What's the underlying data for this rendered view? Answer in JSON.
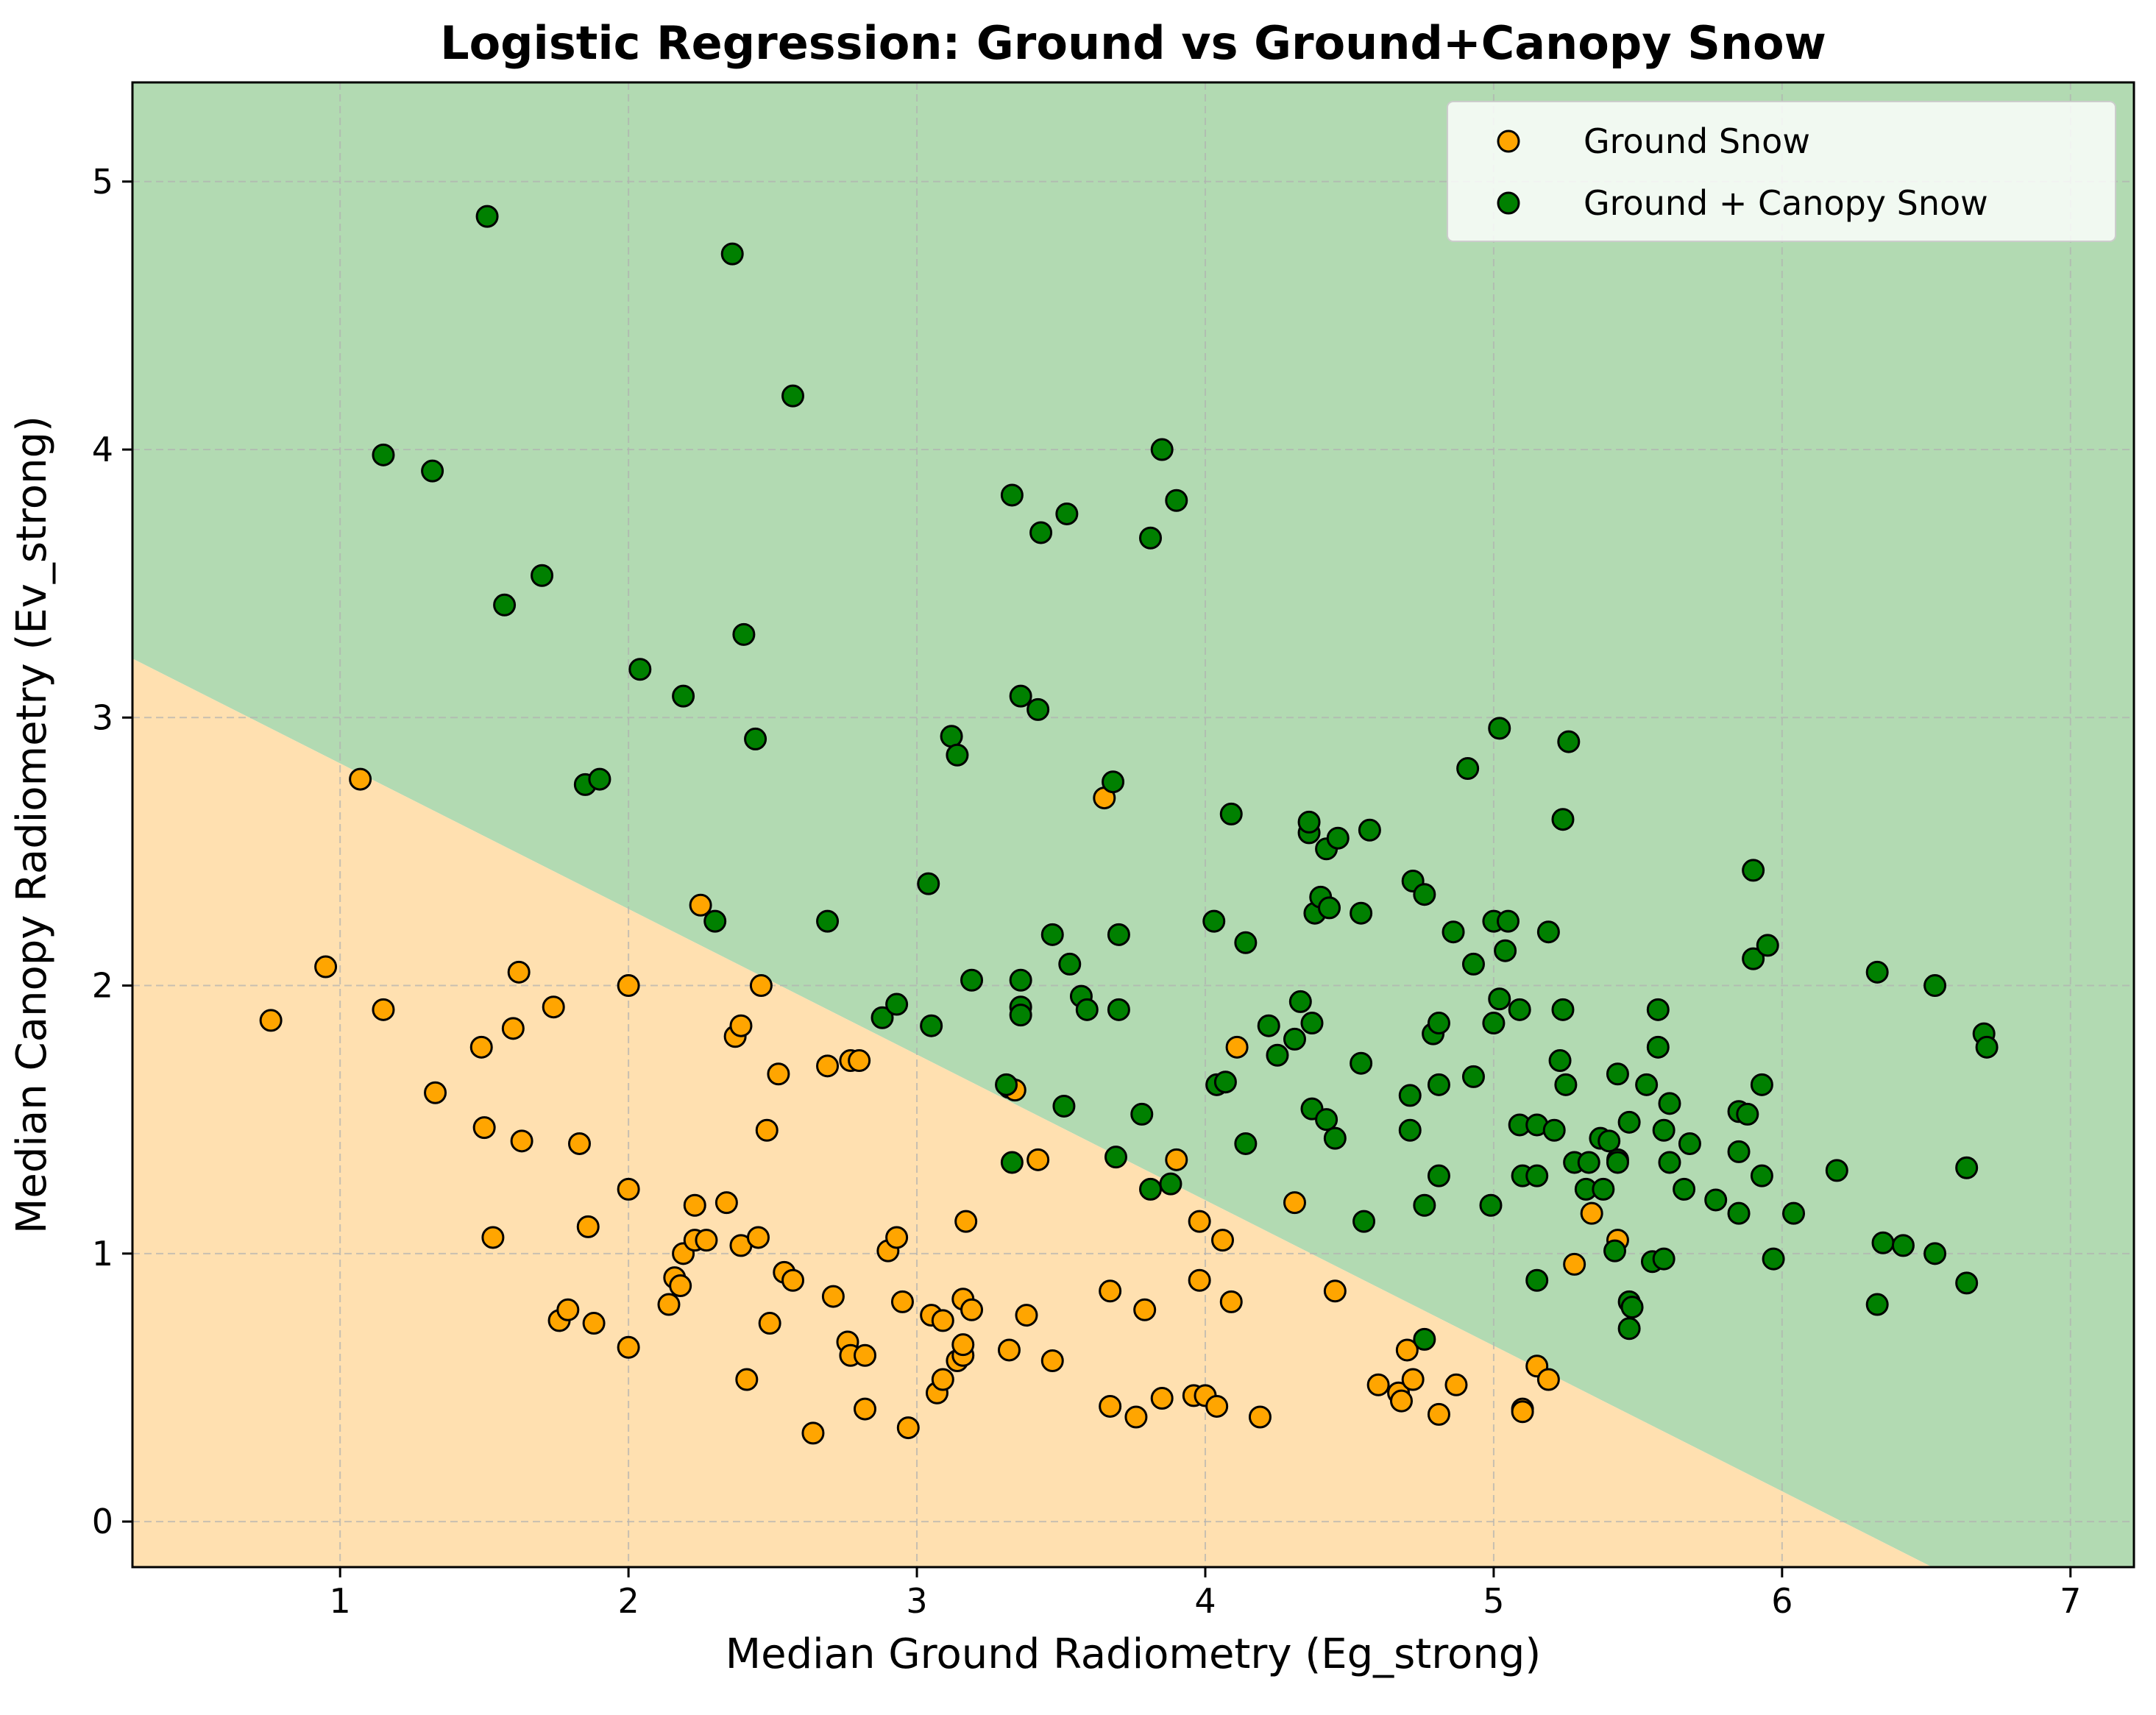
{
  "chart_data": {
    "type": "scatter",
    "title": "Logistic Regression: Ground vs Ground+Canopy Snow",
    "xlabel": "Median Ground Radiometry (Eg_strong)",
    "ylabel": "Median Canopy Radiometry (Ev_strong)",
    "xlim": [
      0.28,
      7.22
    ],
    "ylim": [
      -0.17,
      5.37
    ],
    "xticks": [
      "1",
      "2",
      "3",
      "4",
      "5",
      "6",
      "7"
    ],
    "yticks": [
      "0",
      "1",
      "2",
      "3",
      "4",
      "5"
    ],
    "grid": true,
    "legend_position": "top-right",
    "decision_boundary": {
      "points": [
        [
          0.28,
          3.22
        ],
        [
          7.22,
          -0.55
        ]
      ],
      "region_below_label": "Ground Snow",
      "region_above_label": "Ground + Canopy Snow",
      "region_below_color": "#ffe0b0",
      "region_above_color": "#b2dab2"
    },
    "series": [
      {
        "name": "Ground Snow",
        "color": "#ffa500",
        "points": [
          [
            0.76,
            1.87
          ],
          [
            0.95,
            2.07
          ],
          [
            1.07,
            2.77
          ],
          [
            1.15,
            1.91
          ],
          [
            1.33,
            1.6
          ],
          [
            1.49,
            1.77
          ],
          [
            1.5,
            1.47
          ],
          [
            1.53,
            1.06
          ],
          [
            1.6,
            1.84
          ],
          [
            1.62,
            2.05
          ],
          [
            1.63,
            1.42
          ],
          [
            1.74,
            1.92
          ],
          [
            1.76,
            0.75
          ],
          [
            1.79,
            0.79
          ],
          [
            1.83,
            1.41
          ],
          [
            1.86,
            1.1
          ],
          [
            1.88,
            0.74
          ],
          [
            2.0,
            1.24
          ],
          [
            2.0,
            2.0
          ],
          [
            2.0,
            0.65
          ],
          [
            2.14,
            0.81
          ],
          [
            2.16,
            0.91
          ],
          [
            2.18,
            0.88
          ],
          [
            2.19,
            1.0
          ],
          [
            2.23,
            1.18
          ],
          [
            2.23,
            1.05
          ],
          [
            2.25,
            2.3
          ],
          [
            2.27,
            1.05
          ],
          [
            2.34,
            1.19
          ],
          [
            2.37,
            1.81
          ],
          [
            2.39,
            1.85
          ],
          [
            2.39,
            1.03
          ],
          [
            2.41,
            0.53
          ],
          [
            2.45,
            1.06
          ],
          [
            2.46,
            2.0
          ],
          [
            2.48,
            1.46
          ],
          [
            2.49,
            0.74
          ],
          [
            2.52,
            1.67
          ],
          [
            2.54,
            0.93
          ],
          [
            2.57,
            0.9
          ],
          [
            2.64,
            0.33
          ],
          [
            2.69,
            1.7
          ],
          [
            2.71,
            0.84
          ],
          [
            2.76,
            0.67
          ],
          [
            2.77,
            0.62
          ],
          [
            2.77,
            1.72
          ],
          [
            2.8,
            1.72
          ],
          [
            2.82,
            0.62
          ],
          [
            2.82,
            0.42
          ],
          [
            2.9,
            1.01
          ],
          [
            2.93,
            1.06
          ],
          [
            2.95,
            0.82
          ],
          [
            2.97,
            0.35
          ],
          [
            3.05,
            0.77
          ],
          [
            3.07,
            0.48
          ],
          [
            3.09,
            0.75
          ],
          [
            3.09,
            0.53
          ],
          [
            3.14,
            0.6
          ],
          [
            3.16,
            0.62
          ],
          [
            3.16,
            0.66
          ],
          [
            3.16,
            0.83
          ],
          [
            3.17,
            1.12
          ],
          [
            3.19,
            0.79
          ],
          [
            3.32,
            1.62
          ],
          [
            3.32,
            0.64
          ],
          [
            3.34,
            1.61
          ],
          [
            3.38,
            0.77
          ],
          [
            3.42,
            1.35
          ],
          [
            3.47,
            0.6
          ],
          [
            3.65,
            2.7
          ],
          [
            3.67,
            0.86
          ],
          [
            3.67,
            0.43
          ],
          [
            3.76,
            0.39
          ],
          [
            3.79,
            0.79
          ],
          [
            3.85,
            0.46
          ],
          [
            3.9,
            1.35
          ],
          [
            3.96,
            0.47
          ],
          [
            3.98,
            1.12
          ],
          [
            3.98,
            0.9
          ],
          [
            4.0,
            0.47
          ],
          [
            4.04,
            0.43
          ],
          [
            4.06,
            1.05
          ],
          [
            4.09,
            0.82
          ],
          [
            4.11,
            1.77
          ],
          [
            4.19,
            0.39
          ],
          [
            4.31,
            1.19
          ],
          [
            4.45,
            0.86
          ],
          [
            4.6,
            0.51
          ],
          [
            4.67,
            0.48
          ],
          [
            4.68,
            0.45
          ],
          [
            4.7,
            0.64
          ],
          [
            4.72,
            0.53
          ],
          [
            4.81,
            0.4
          ],
          [
            4.87,
            0.51
          ],
          [
            5.1,
            0.42
          ],
          [
            5.1,
            0.41
          ],
          [
            5.15,
            0.58
          ],
          [
            5.19,
            0.53
          ],
          [
            5.28,
            0.96
          ],
          [
            5.34,
            1.15
          ],
          [
            5.43,
            1.05
          ]
        ]
      },
      {
        "name": "Ground + Canopy Snow",
        "color": "#008000",
        "points": [
          [
            1.15,
            3.98
          ],
          [
            1.32,
            3.92
          ],
          [
            1.51,
            4.87
          ],
          [
            1.57,
            3.42
          ],
          [
            1.7,
            3.53
          ],
          [
            1.85,
            2.75
          ],
          [
            1.9,
            2.77
          ],
          [
            2.04,
            3.18
          ],
          [
            2.19,
            3.08
          ],
          [
            2.3,
            2.24
          ],
          [
            2.36,
            4.73
          ],
          [
            2.4,
            3.31
          ],
          [
            2.44,
            2.92
          ],
          [
            2.57,
            4.2
          ],
          [
            2.69,
            2.24
          ],
          [
            2.88,
            1.88
          ],
          [
            2.93,
            1.93
          ],
          [
            3.04,
            2.38
          ],
          [
            3.05,
            1.85
          ],
          [
            3.12,
            2.93
          ],
          [
            3.14,
            2.86
          ],
          [
            3.19,
            2.02
          ],
          [
            3.31,
            1.63
          ],
          [
            3.33,
            3.83
          ],
          [
            3.33,
            1.34
          ],
          [
            3.36,
            3.08
          ],
          [
            3.36,
            2.02
          ],
          [
            3.36,
            1.92
          ],
          [
            3.36,
            1.89
          ],
          [
            3.42,
            3.03
          ],
          [
            3.43,
            3.69
          ],
          [
            3.47,
            2.19
          ],
          [
            3.51,
            1.55
          ],
          [
            3.52,
            3.76
          ],
          [
            3.53,
            2.08
          ],
          [
            3.57,
            1.96
          ],
          [
            3.59,
            1.91
          ],
          [
            3.68,
            2.76
          ],
          [
            3.69,
            1.36
          ],
          [
            3.7,
            1.91
          ],
          [
            3.7,
            2.19
          ],
          [
            3.78,
            1.52
          ],
          [
            3.81,
            3.67
          ],
          [
            3.81,
            1.24
          ],
          [
            3.85,
            4.0
          ],
          [
            3.88,
            1.26
          ],
          [
            3.9,
            3.81
          ],
          [
            4.03,
            2.24
          ],
          [
            4.04,
            1.63
          ],
          [
            4.07,
            1.64
          ],
          [
            4.09,
            2.64
          ],
          [
            4.14,
            1.41
          ],
          [
            4.14,
            2.16
          ],
          [
            4.22,
            1.85
          ],
          [
            4.25,
            1.74
          ],
          [
            4.31,
            1.8
          ],
          [
            4.33,
            1.94
          ],
          [
            4.36,
            2.57
          ],
          [
            4.36,
            2.61
          ],
          [
            4.37,
            1.54
          ],
          [
            4.37,
            1.86
          ],
          [
            4.38,
            2.27
          ],
          [
            4.4,
            2.33
          ],
          [
            4.42,
            1.5
          ],
          [
            4.42,
            2.51
          ],
          [
            4.43,
            2.29
          ],
          [
            4.45,
            1.43
          ],
          [
            4.46,
            2.55
          ],
          [
            4.54,
            1.71
          ],
          [
            4.54,
            2.27
          ],
          [
            4.55,
            1.12
          ],
          [
            4.57,
            2.58
          ],
          [
            4.71,
            1.59
          ],
          [
            4.71,
            1.46
          ],
          [
            4.72,
            2.39
          ],
          [
            4.76,
            2.34
          ],
          [
            4.76,
            1.18
          ],
          [
            4.76,
            0.68
          ],
          [
            4.79,
            1.82
          ],
          [
            4.81,
            1.86
          ],
          [
            4.81,
            1.63
          ],
          [
            4.81,
            1.29
          ],
          [
            4.86,
            2.2
          ],
          [
            4.91,
            2.81
          ],
          [
            4.93,
            2.08
          ],
          [
            4.93,
            1.66
          ],
          [
            4.99,
            1.18
          ],
          [
            5.0,
            1.86
          ],
          [
            5.0,
            2.24
          ],
          [
            5.02,
            2.96
          ],
          [
            5.02,
            1.95
          ],
          [
            5.04,
            2.13
          ],
          [
            5.05,
            2.24
          ],
          [
            5.09,
            1.91
          ],
          [
            5.09,
            1.48
          ],
          [
            5.1,
            1.29
          ],
          [
            5.15,
            1.29
          ],
          [
            5.15,
            1.48
          ],
          [
            5.15,
            0.9
          ],
          [
            5.19,
            2.2
          ],
          [
            5.21,
            1.46
          ],
          [
            5.23,
            1.72
          ],
          [
            5.24,
            2.62
          ],
          [
            5.24,
            1.91
          ],
          [
            5.25,
            1.63
          ],
          [
            5.26,
            2.91
          ],
          [
            5.28,
            1.34
          ],
          [
            5.32,
            1.24
          ],
          [
            5.33,
            1.34
          ],
          [
            5.37,
            1.43
          ],
          [
            5.38,
            1.24
          ],
          [
            5.4,
            1.42
          ],
          [
            5.42,
            1.01
          ],
          [
            5.43,
            1.67
          ],
          [
            5.43,
            1.35
          ],
          [
            5.43,
            1.34
          ],
          [
            5.47,
            1.49
          ],
          [
            5.47,
            0.82
          ],
          [
            5.47,
            0.72
          ],
          [
            5.48,
            0.8
          ],
          [
            5.53,
            1.63
          ],
          [
            5.55,
            0.97
          ],
          [
            5.57,
            1.77
          ],
          [
            5.57,
            1.91
          ],
          [
            5.59,
            1.46
          ],
          [
            5.59,
            0.98
          ],
          [
            5.61,
            1.34
          ],
          [
            5.61,
            1.56
          ],
          [
            5.66,
            1.24
          ],
          [
            5.68,
            1.41
          ],
          [
            5.77,
            1.2
          ],
          [
            5.85,
            1.53
          ],
          [
            5.85,
            1.38
          ],
          [
            5.85,
            1.15
          ],
          [
            5.88,
            1.52
          ],
          [
            5.9,
            2.43
          ],
          [
            5.9,
            2.1
          ],
          [
            5.93,
            1.63
          ],
          [
            5.93,
            1.29
          ],
          [
            5.95,
            2.15
          ],
          [
            5.97,
            0.98
          ],
          [
            6.04,
            1.15
          ],
          [
            6.19,
            1.31
          ],
          [
            6.33,
            2.05
          ],
          [
            6.33,
            0.81
          ],
          [
            6.35,
            1.04
          ],
          [
            6.42,
            1.03
          ],
          [
            6.53,
            2.0
          ],
          [
            6.53,
            1.0
          ],
          [
            6.64,
            1.32
          ],
          [
            6.64,
            0.89
          ],
          [
            6.7,
            1.82
          ],
          [
            6.71,
            1.77
          ]
        ]
      }
    ]
  }
}
